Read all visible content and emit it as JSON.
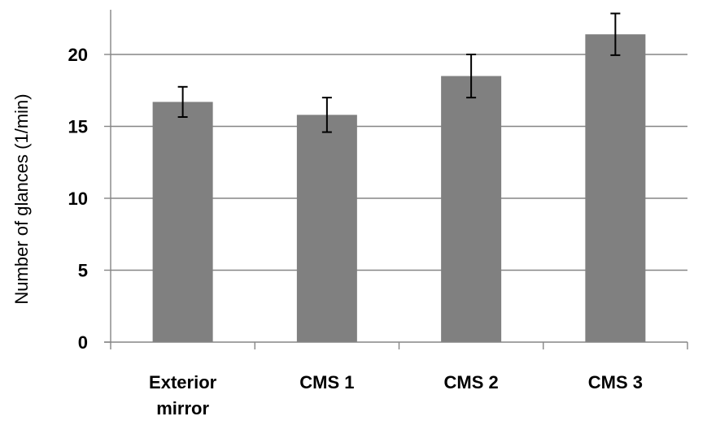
{
  "chart_data": {
    "type": "bar",
    "title": "",
    "xlabel": "",
    "ylabel": "Number of glances (1/min)",
    "categories": [
      [
        "Exterior",
        "mirror"
      ],
      [
        "CMS 1"
      ],
      [
        "CMS 2"
      ],
      [
        "CMS 3"
      ]
    ],
    "values": [
      16.7,
      15.8,
      18.5,
      21.4
    ],
    "error": [
      1.05,
      1.2,
      1.5,
      1.45
    ],
    "ylim": [
      0,
      20
    ],
    "yticks": [
      0,
      5,
      10,
      15,
      20
    ],
    "grid": true,
    "legend": "none",
    "bar_color": "#808080",
    "grid_color": "#868686"
  }
}
